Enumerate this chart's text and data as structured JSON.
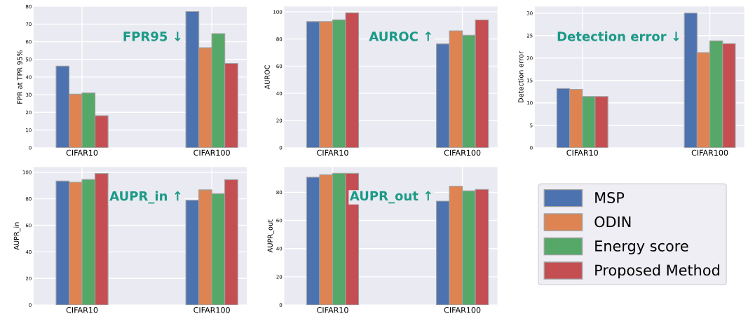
{
  "chart_data": [
    {
      "type": "bar",
      "categories": [
        "CIFAR10",
        "CIFAR100"
      ],
      "ylabel": "FPR at TPR 95%",
      "annotations": [
        "FPR95 ↓"
      ],
      "ylim": [
        0,
        80
      ],
      "yticks": [
        0,
        10,
        20,
        30,
        40,
        50,
        60,
        70,
        80
      ],
      "grid": true,
      "legend": "bottom right",
      "series": [
        {
          "name": "MSP",
          "color": "#4c72b0",
          "values": [
            46.2,
            77.1
          ]
        },
        {
          "name": "ODIN",
          "color": "#dd8452",
          "values": [
            30.3,
            56.6
          ]
        },
        {
          "name": "Energy score",
          "color": "#55a868",
          "values": [
            31.0,
            64.6
          ]
        },
        {
          "name": "Proposed Method",
          "color": "#c44e52",
          "values": [
            18.1,
            47.7
          ]
        }
      ]
    },
    {
      "type": "bar",
      "categories": [
        "CIFAR10",
        "CIFAR100"
      ],
      "ylabel": "AUROC",
      "annotations": [
        "AUROC ↑"
      ],
      "ylim": [
        0,
        104
      ],
      "yticks": [
        0,
        20,
        40,
        60,
        80,
        100
      ],
      "grid": true,
      "legend": false,
      "series": [
        {
          "color": "#4c72b0",
          "values": [
            92.8,
            76.4
          ]
        },
        {
          "color": "#dd8452",
          "values": [
            92.8,
            86.0
          ]
        },
        {
          "color": "#55a868",
          "values": [
            94.1,
            82.8
          ]
        },
        {
          "color": "#c44e52",
          "values": [
            99.3,
            94.0
          ]
        }
      ]
    },
    {
      "type": "bar",
      "categories": [
        "CIFAR10",
        "CIFAR100"
      ],
      "ylabel": "Detection error",
      "annotations": [
        "Detection error ↓"
      ],
      "ylim": [
        0,
        31.5
      ],
      "yticks": [
        0,
        5,
        10,
        15,
        20,
        25,
        30
      ],
      "grid": true,
      "legend": false,
      "series": [
        {
          "color": "#4c72b0",
          "values": [
            13.2,
            30.0
          ]
        },
        {
          "color": "#dd8452",
          "values": [
            13.0,
            21.2
          ]
        },
        {
          "color": "#55a868",
          "values": [
            11.4,
            23.8
          ]
        },
        {
          "color": "#c44e52",
          "values": [
            11.4,
            23.2
          ]
        }
      ]
    },
    {
      "type": "bar",
      "categories": [
        "CIFAR10",
        "CIFAR100"
      ],
      "ylabel": "AUPR_in",
      "annotations": [
        "AUPR_in ↑"
      ],
      "ylim": [
        0,
        104
      ],
      "yticks": [
        0,
        20,
        40,
        60,
        80,
        100
      ],
      "grid": true,
      "legend": false,
      "series": [
        {
          "color": "#4c72b0",
          "values": [
            93.3,
            78.9
          ]
        },
        {
          "color": "#dd8452",
          "values": [
            92.5,
            86.7
          ]
        },
        {
          "color": "#55a868",
          "values": [
            94.5,
            83.8
          ]
        },
        {
          "color": "#c44e52",
          "values": [
            99.0,
            94.4
          ]
        }
      ]
    },
    {
      "type": "bar",
      "categories": [
        "CIFAR10",
        "CIFAR100"
      ],
      "ylabel": "AUPR_out",
      "annotations": [
        "AUPR_out ↑"
      ],
      "ylim": [
        0,
        98
      ],
      "yticks": [
        0,
        20,
        40,
        60,
        80
      ],
      "grid": true,
      "legend": false,
      "series": [
        {
          "color": "#4c72b0",
          "values": [
            90.7,
            73.7
          ]
        },
        {
          "color": "#dd8452",
          "values": [
            92.4,
            84.3
          ]
        },
        {
          "color": "#55a868",
          "values": [
            93.5,
            81.0
          ]
        },
        {
          "color": "#c44e52",
          "values": [
            93.4,
            82.0
          ]
        }
      ]
    }
  ]
}
